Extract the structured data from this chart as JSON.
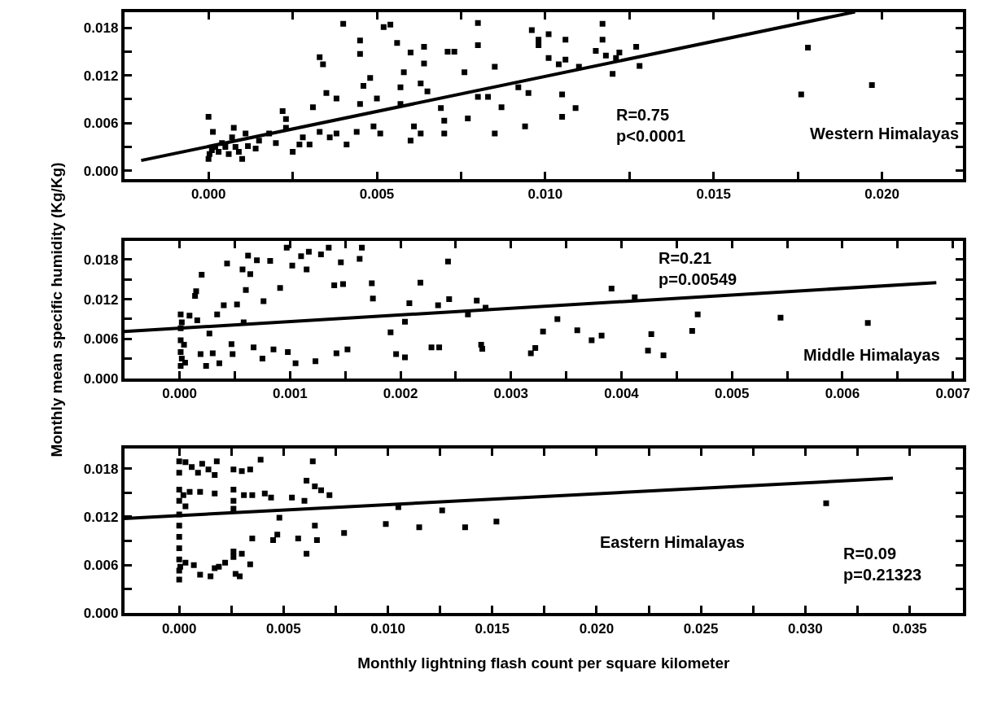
{
  "chart_data": [
    {
      "type": "scatter",
      "xlim": [
        -0.0025,
        0.0224
      ],
      "ylim": [
        -0.001,
        0.02
      ],
      "xticks": [
        {
          "value": 0,
          "label": "0.000"
        },
        {
          "value": 0.0025,
          "label": null
        },
        {
          "value": 0.005,
          "label": "0.005"
        },
        {
          "value": 0.0075,
          "label": null
        },
        {
          "value": 0.01,
          "label": "0.010"
        },
        {
          "value": 0.0125,
          "label": null
        },
        {
          "value": 0.015,
          "label": "0.015"
        },
        {
          "value": 0.0175,
          "label": null
        },
        {
          "value": 0.02,
          "label": "0.020"
        }
      ],
      "yticks": [
        {
          "value": 0,
          "label": "0.000"
        },
        {
          "value": 0.003,
          "label": null
        },
        {
          "value": 0.006,
          "label": "0.006"
        },
        {
          "value": 0.009,
          "label": null
        },
        {
          "value": 0.012,
          "label": "0.012"
        },
        {
          "value": 0.015,
          "label": null
        },
        {
          "value": 0.018,
          "label": "0.018"
        }
      ],
      "annotations": [
        "R=0.75\np<0.0001",
        "Western Himalayas"
      ],
      "series": [
        {
          "color": "#000000",
          "marker": "square",
          "x": [
            0.0,
            3e-05,
            0.0001,
            0.0,
            0.00013,
            0.0002,
            0.0003,
            0.0004,
            0.0005,
            0.0006,
            0.0007,
            0.00075,
            0.0008,
            0.0009,
            0.001,
            0.0011,
            0.00117,
            0.0014,
            0.0015,
            0.0018,
            0.002,
            0.0022,
            0.0023,
            0.0023,
            0.0025,
            0.0027,
            0.0028,
            0.003,
            0.0031,
            0.0033,
            0.0033,
            0.0034,
            0.0035,
            0.0036,
            0.0038,
            0.0038,
            0.004,
            0.0041,
            0.0044,
            0.0045,
            0.0045,
            0.0045,
            0.0046,
            0.0048,
            0.0049,
            0.005,
            0.0051,
            0.0052,
            0.0054,
            0.0056,
            0.0057,
            0.0057,
            0.0058,
            0.006,
            0.006,
            0.0061,
            0.0063,
            0.0063,
            0.0064,
            0.0064,
            0.0065,
            0.0069,
            0.007,
            0.007,
            0.0071,
            0.0073,
            0.0076,
            0.0077,
            0.008,
            0.008,
            0.008,
            0.0083,
            0.0085,
            0.0085,
            0.0087,
            0.0092,
            0.0094,
            0.0095,
            0.0096,
            0.0098,
            0.0098,
            0.0101,
            0.0101,
            0.0104,
            0.0105,
            0.0105,
            0.0106,
            0.0106,
            0.0109,
            0.011,
            0.0115,
            0.0117,
            0.0117,
            0.0118,
            0.012,
            0.0121,
            0.0122,
            0.0127,
            0.0128,
            0.0178,
            0.0176,
            0.0197
          ],
          "values": [
            0.0015,
            0.0021,
            0.0026,
            0.0068,
            0.0049,
            0.003,
            0.0024,
            0.0035,
            0.003,
            0.0021,
            0.0042,
            0.0054,
            0.003,
            0.0024,
            0.0015,
            0.0047,
            0.0031,
            0.0028,
            0.0038,
            0.0047,
            0.0035,
            0.0075,
            0.0065,
            0.0054,
            0.0024,
            0.0033,
            0.0042,
            0.0033,
            0.008,
            0.0049,
            0.0143,
            0.0134,
            0.0098,
            0.0042,
            0.0091,
            0.0047,
            0.0185,
            0.0033,
            0.0049,
            0.0164,
            0.0147,
            0.0084,
            0.0107,
            0.0117,
            0.0056,
            0.0091,
            0.0047,
            0.0181,
            0.0184,
            0.0161,
            0.0084,
            0.0105,
            0.0124,
            0.0149,
            0.0038,
            0.0056,
            0.0047,
            0.011,
            0.0156,
            0.0135,
            0.01,
            0.0079,
            0.0063,
            0.0047,
            0.015,
            0.015,
            0.0124,
            0.0066,
            0.0186,
            0.0158,
            0.0093,
            0.0093,
            0.0047,
            0.0131,
            0.008,
            0.0105,
            0.0056,
            0.0098,
            0.0177,
            0.0165,
            0.0158,
            0.0172,
            0.0142,
            0.0134,
            0.0096,
            0.0068,
            0.0165,
            0.014,
            0.0079,
            0.0131,
            0.0151,
            0.0185,
            0.0165,
            0.0145,
            0.0122,
            0.0142,
            0.0149,
            0.0156,
            0.0132,
            0.0155,
            0.0096,
            0.0108
          ]
        },
        {
          "type": "line",
          "color": "#000000",
          "x": [
            -0.002,
            0.0192
          ],
          "values": [
            0.0013,
            0.02
          ],
          "marker": "none"
        }
      ]
    },
    {
      "type": "scatter",
      "ylabel": "Monthly mean specific humidity (Kg/Kg)",
      "xlim": [
        -0.0005,
        0.00709
      ],
      "ylim": [
        0,
        0.0208
      ],
      "xticks": [
        {
          "value": 0,
          "label": "0.000"
        },
        {
          "value": 0.0005,
          "label": null
        },
        {
          "value": 0.001,
          "label": "0.001"
        },
        {
          "value": 0.0015,
          "label": null
        },
        {
          "value": 0.002,
          "label": "0.002"
        },
        {
          "value": 0.0025,
          "label": null
        },
        {
          "value": 0.003,
          "label": "0.003"
        },
        {
          "value": 0.0035,
          "label": null
        },
        {
          "value": 0.004,
          "label": "0.004"
        },
        {
          "value": 0.0045,
          "label": null
        },
        {
          "value": 0.005,
          "label": "0.005"
        },
        {
          "value": 0.0055,
          "label": null
        },
        {
          "value": 0.006,
          "label": "0.006"
        },
        {
          "value": 0.0065,
          "label": null
        },
        {
          "value": 0.007,
          "label": "0.007"
        }
      ],
      "yticks": [
        {
          "value": 0,
          "label": "0.000"
        },
        {
          "value": 0.003,
          "label": null
        },
        {
          "value": 0.006,
          "label": "0.006"
        },
        {
          "value": 0.009,
          "label": null
        },
        {
          "value": 0.012,
          "label": "0.012"
        },
        {
          "value": 0.015,
          "label": null
        },
        {
          "value": 0.018,
          "label": "0.018"
        }
      ],
      "annotations": [
        "R=0.21\np=0.00549",
        "Middle Himalayas"
      ],
      "series": [
        {
          "color": "#000000",
          "marker": "square",
          "x": [
            1e-05,
            2e-05,
            1e-05,
            4e-05,
            1e-05,
            1e-05,
            2e-05,
            1e-05,
            9e-05,
            5e-05,
            0.00016,
            0.00014,
            0.00015,
            0.0002,
            0.00019,
            0.00024,
            0.00027,
            0.0003,
            0.00034,
            0.00036,
            0.0004,
            0.00043,
            0.00047,
            0.00048,
            0.00052,
            0.00057,
            0.00058,
            0.0006,
            0.00062,
            0.00064,
            0.00067,
            0.0007,
            0.00075,
            0.00076,
            0.00082,
            0.00085,
            0.00091,
            0.00097,
            0.00098,
            0.00102,
            0.00105,
            0.0011,
            0.00115,
            0.00117,
            0.00123,
            0.00128,
            0.00135,
            0.0014,
            0.00142,
            0.00146,
            0.00148,
            0.00152,
            0.00163,
            0.00165,
            0.00174,
            0.00175,
            0.00191,
            0.00196,
            0.00204,
            0.00204,
            0.00208,
            0.00218,
            0.00228,
            0.00235,
            0.00234,
            0.00243,
            0.00244,
            0.00261,
            0.00269,
            0.00273,
            0.00274,
            0.00277,
            0.00318,
            0.00322,
            0.00329,
            0.00342,
            0.0036,
            0.00373,
            0.00382,
            0.00391,
            0.00412,
            0.00424,
            0.00427,
            0.00438,
            0.00464,
            0.00469,
            0.00544,
            0.00623
          ],
          "values": [
            0.0019,
            0.003,
            0.004,
            0.0051,
            0.0058,
            0.0076,
            0.0085,
            0.0097,
            0.0095,
            0.0024,
            0.0088,
            0.0125,
            0.0132,
            0.0157,
            0.0037,
            0.0019,
            0.0068,
            0.0038,
            0.0097,
            0.0023,
            0.0111,
            0.0174,
            0.0052,
            0.0037,
            0.0112,
            0.0165,
            0.0085,
            0.0134,
            0.0186,
            0.0158,
            0.0047,
            0.0179,
            0.003,
            0.0117,
            0.0178,
            0.0044,
            0.0137,
            0.0198,
            0.004,
            0.0171,
            0.0023,
            0.0185,
            0.0165,
            0.0192,
            0.0026,
            0.0188,
            0.0198,
            0.0141,
            0.0038,
            0.0176,
            0.0143,
            0.0044,
            0.0181,
            0.0198,
            0.0144,
            0.0121,
            0.007,
            0.0037,
            0.0032,
            0.0086,
            0.0114,
            0.0145,
            0.0047,
            0.0047,
            0.0111,
            0.0177,
            0.012,
            0.0097,
            0.0118,
            0.0051,
            0.0045,
            0.0107,
            0.0038,
            0.0046,
            0.0071,
            0.009,
            0.0073,
            0.0058,
            0.0065,
            0.0136,
            0.0123,
            0.0042,
            0.0067,
            0.0035,
            0.0072,
            0.0097,
            0.0092,
            0.0084
          ]
        },
        {
          "type": "line",
          "color": "#000000",
          "x": [
            -0.0005,
            0.00685
          ],
          "values": [
            0.0071,
            0.0145
          ],
          "marker": "none"
        }
      ]
    },
    {
      "type": "scatter",
      "xlabel": "Monthly lightning flash count per square kilometer",
      "xlim": [
        -0.00263,
        0.03755
      ],
      "ylim": [
        0,
        0.0205
      ],
      "xticks": [
        {
          "value": 0,
          "label": "0.000"
        },
        {
          "value": 0.0025,
          "label": null
        },
        {
          "value": 0.005,
          "label": "0.005"
        },
        {
          "value": 0.0075,
          "label": null
        },
        {
          "value": 0.01,
          "label": "0.010"
        },
        {
          "value": 0.0125,
          "label": null
        },
        {
          "value": 0.015,
          "label": "0.015"
        },
        {
          "value": 0.0175,
          "label": null
        },
        {
          "value": 0.02,
          "label": "0.020"
        },
        {
          "value": 0.0225,
          "label": null
        },
        {
          "value": 0.025,
          "label": "0.025"
        },
        {
          "value": 0.0275,
          "label": null
        },
        {
          "value": 0.03,
          "label": "0.030"
        },
        {
          "value": 0.0325,
          "label": null
        },
        {
          "value": 0.035,
          "label": "0.035"
        }
      ],
      "yticks": [
        {
          "value": 0,
          "label": "0.000"
        },
        {
          "value": 0.003,
          "label": null
        },
        {
          "value": 0.006,
          "label": "0.006"
        },
        {
          "value": 0.009,
          "label": null
        },
        {
          "value": 0.012,
          "label": "0.012"
        },
        {
          "value": 0.015,
          "label": null
        },
        {
          "value": 0.018,
          "label": "0.018"
        }
      ],
      "annotations": [
        "Eastern Himalayas",
        "R=0.09\np=0.21323"
      ],
      "series": [
        {
          "color": "#000000",
          "marker": "square",
          "x": [
            0,
            0,
            0,
            0,
            0,
            0,
            0,
            0,
            0,
            0,
            0,
            5e-05,
            0.0003,
            0.0006,
            0.0009,
            0.0011,
            0.0014,
            0.0017,
            0.0018,
            0.0002,
            0.0005,
            0.0003,
            0.001,
            0.0017,
            0.0026,
            0.003,
            0.0034,
            0.0039,
            0.0026,
            0.0026,
            0.0031,
            0.0035,
            0.0041,
            0.0044,
            0.0054,
            0.006,
            0.0061,
            0.0064,
            0.0065,
            0.0068,
            0.0072,
            0.0026,
            0.0048,
            0.0047,
            0.0045,
            0.0035,
            0.0057,
            0.0065,
            0.0066,
            0.0061,
            0.0079,
            0.0099,
            0.0105,
            0.0115,
            0.0126,
            0.0137,
            0.0152,
            0.031,
            0.0003,
            0.0007,
            0.001,
            0.0015,
            0.0017,
            0.0019,
            0.0022,
            0.0026,
            0.0027,
            0.0029,
            0.003,
            0.0034,
            0.0026
          ],
          "values": [
            0.0189,
            0.0175,
            0.0154,
            0.014,
            0.0123,
            0.0109,
            0.0095,
            0.0081,
            0.0067,
            0.0053,
            0.0042,
            0.0058,
            0.0188,
            0.0182,
            0.0175,
            0.0186,
            0.0179,
            0.0172,
            0.0189,
            0.0147,
            0.0151,
            0.0133,
            0.0151,
            0.0149,
            0.0179,
            0.0177,
            0.0179,
            0.0191,
            0.0154,
            0.014,
            0.0147,
            0.0147,
            0.0149,
            0.0144,
            0.0144,
            0.014,
            0.0165,
            0.0189,
            0.0158,
            0.0153,
            0.0147,
            0.013,
            0.0119,
            0.0098,
            0.0091,
            0.0093,
            0.0093,
            0.0109,
            0.0091,
            0.0074,
            0.01,
            0.0111,
            0.0132,
            0.0107,
            0.0128,
            0.0107,
            0.0114,
            0.0137,
            0.0063,
            0.006,
            0.0048,
            0.0046,
            0.0056,
            0.0058,
            0.0063,
            0.0077,
            0.0049,
            0.0046,
            0.0074,
            0.0061,
            0.007
          ]
        },
        {
          "type": "line",
          "color": "#000000",
          "x": [
            -0.00263,
            0.0342
          ],
          "values": [
            0.0118,
            0.0168
          ],
          "marker": "none"
        }
      ]
    }
  ]
}
